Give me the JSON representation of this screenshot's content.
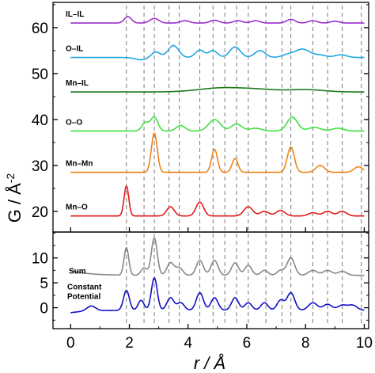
{
  "chart_data": {
    "type": "line",
    "xlabel": "r / Å",
    "ylabel": "G / Å",
    "ylabel_superscript": "-2",
    "x_ticks": [
      0,
      2,
      4,
      6,
      8,
      10
    ],
    "xlim": [
      -0.6,
      10.15
    ],
    "grid": false,
    "reference_lines_x": [
      1.9,
      2.5,
      2.85,
      3.35,
      3.7,
      4.4,
      4.85,
      5.25,
      5.65,
      6.05,
      6.65,
      7.2,
      7.5,
      8.25,
      8.75,
      9.25,
      9.9
    ],
    "panels": [
      {
        "position": "top",
        "ylim": [
          15.5,
          65.5
        ],
        "y_ticks": [
          20,
          30,
          40,
          50,
          60
        ],
        "series": [
          {
            "name": "IL–IL",
            "color": "#9c2fcf",
            "baseline": 61.0,
            "peaks": [
              [
                1.95,
                1.4,
                0.12
              ],
              [
                2.85,
                1.0,
                0.15
              ],
              [
                3.9,
                0.5,
                0.15
              ],
              [
                4.9,
                0.6,
                0.15
              ],
              [
                5.7,
                0.5,
                0.15
              ],
              [
                6.3,
                0.5,
                0.15
              ],
              [
                7.5,
                0.8,
                0.15
              ],
              [
                8.25,
                0.5,
                0.15
              ],
              [
                9.0,
                0.4,
                0.15
              ]
            ]
          },
          {
            "name": "O–IL",
            "color": "#1fa7e0",
            "baseline": 53.5,
            "peaks": [
              [
                2.4,
                -0.5,
                0.2
              ],
              [
                2.9,
                1.2,
                0.15
              ],
              [
                3.5,
                2.6,
                0.18
              ],
              [
                4.4,
                1.6,
                0.15
              ],
              [
                4.85,
                1.5,
                0.15
              ],
              [
                5.6,
                2.3,
                0.18
              ],
              [
                6.45,
                1.5,
                0.18
              ],
              [
                7.4,
                0.6,
                0.2
              ],
              [
                7.9,
                1.8,
                0.25
              ],
              [
                8.5,
                0.5,
                0.2
              ],
              [
                9.2,
                0.6,
                0.2
              ]
            ]
          },
          {
            "name": "Mn–IL",
            "color": "#1c7a1a",
            "baseline": 46.0,
            "peaks": [
              [
                5.2,
                0.9,
                0.8
              ],
              [
                6.5,
                0.4,
                0.6
              ],
              [
                8.0,
                0.5,
                0.6
              ]
            ]
          },
          {
            "name": "O–O",
            "color": "#3fe13f",
            "baseline": 37.5,
            "peaks": [
              [
                2.55,
                1.8,
                0.12
              ],
              [
                2.85,
                3.0,
                0.12
              ],
              [
                3.75,
                1.2,
                0.15
              ],
              [
                4.9,
                2.5,
                0.2
              ],
              [
                5.65,
                1.5,
                0.18
              ],
              [
                6.3,
                0.6,
                0.2
              ],
              [
                7.55,
                3.0,
                0.18
              ],
              [
                8.3,
                0.8,
                0.2
              ],
              [
                9.1,
                0.6,
                0.2
              ]
            ]
          },
          {
            "name": "Mn–Mn",
            "color": "#f08418",
            "baseline": 28.5,
            "peaks": [
              [
                2.85,
                8.5,
                0.1
              ],
              [
                4.9,
                5.0,
                0.1
              ],
              [
                5.6,
                3.0,
                0.1
              ],
              [
                7.5,
                5.5,
                0.12
              ],
              [
                8.5,
                1.5,
                0.15
              ],
              [
                9.8,
                1.2,
                0.15
              ]
            ]
          },
          {
            "name": "Mn–O",
            "color": "#e01a1a",
            "baseline": 19.0,
            "peaks": [
              [
                1.9,
                6.5,
                0.08
              ],
              [
                3.4,
                2.0,
                0.13
              ],
              [
                4.4,
                3.0,
                0.13
              ],
              [
                6.05,
                2.0,
                0.15
              ],
              [
                6.6,
                1.0,
                0.15
              ],
              [
                7.15,
                1.2,
                0.15
              ],
              [
                8.25,
                0.7,
                0.15
              ],
              [
                8.75,
                1.0,
                0.15
              ],
              [
                9.25,
                1.0,
                0.15
              ]
            ]
          }
        ]
      },
      {
        "position": "bottom",
        "ylim": [
          -4.2,
          15.2
        ],
        "y_ticks": [
          0,
          5,
          10
        ],
        "series": [
          {
            "name": "Sum",
            "color": "#888888",
            "baseline": 6.5,
            "start_offset": 1.0,
            "peaks": [
              [
                1.9,
                5.5,
                0.08
              ],
              [
                2.5,
                1.5,
                0.1
              ],
              [
                2.85,
                7.5,
                0.1
              ],
              [
                3.4,
                2.5,
                0.12
              ],
              [
                3.7,
                1.5,
                0.12
              ],
              [
                4.4,
                3.0,
                0.12
              ],
              [
                4.9,
                3.0,
                0.12
              ],
              [
                5.6,
                2.5,
                0.12
              ],
              [
                6.05,
                2.0,
                0.12
              ],
              [
                6.6,
                1.0,
                0.12
              ],
              [
                7.15,
                1.0,
                0.12
              ],
              [
                7.5,
                3.5,
                0.13
              ],
              [
                8.25,
                1.0,
                0.15
              ],
              [
                8.75,
                1.0,
                0.15
              ],
              [
                9.25,
                0.8,
                0.15
              ]
            ]
          },
          {
            "name": "Constant Potential",
            "color": "#1010c8",
            "baseline": -0.5,
            "start_offset": -0.5,
            "peaks": [
              [
                0.7,
                1.0,
                0.15
              ],
              [
                1.9,
                4.0,
                0.1
              ],
              [
                2.4,
                2.0,
                0.1
              ],
              [
                2.85,
                6.5,
                0.1
              ],
              [
                3.4,
                2.5,
                0.12
              ],
              [
                3.75,
                1.5,
                0.12
              ],
              [
                4.4,
                3.5,
                0.12
              ],
              [
                4.9,
                2.5,
                0.12
              ],
              [
                5.6,
                2.5,
                0.12
              ],
              [
                6.05,
                1.5,
                0.12
              ],
              [
                6.6,
                1.5,
                0.12
              ],
              [
                7.15,
                2.0,
                0.12
              ],
              [
                7.5,
                3.5,
                0.13
              ],
              [
                8.25,
                1.5,
                0.15
              ],
              [
                8.75,
                1.2,
                0.15
              ],
              [
                9.25,
                1.0,
                0.15
              ],
              [
                9.6,
                1.0,
                0.15
              ]
            ]
          }
        ]
      }
    ]
  }
}
